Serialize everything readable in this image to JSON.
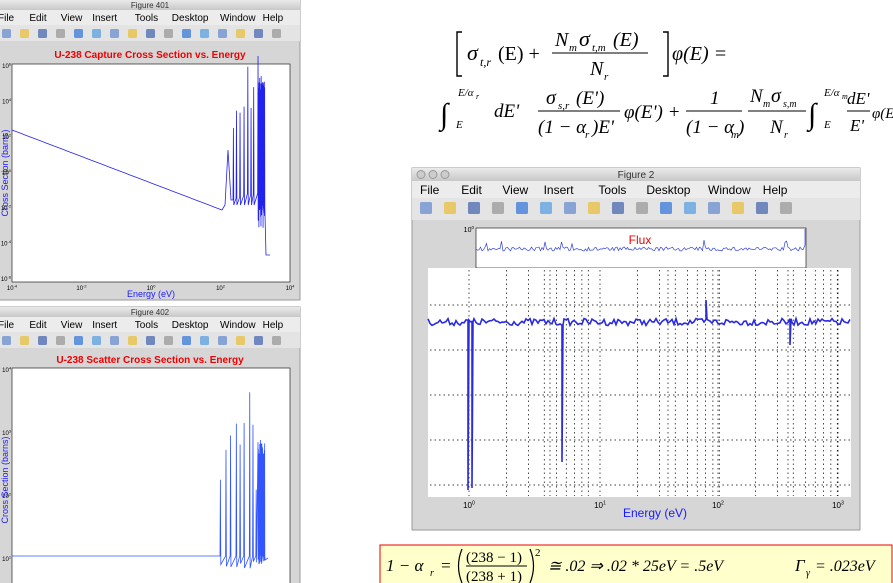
{
  "figure_401": {
    "window_title": "Figure 401",
    "menu": [
      "File",
      "Edit",
      "View",
      "Insert",
      "Tools",
      "Desktop",
      "Window",
      "Help"
    ],
    "plot_title": "U-238 Capture Cross Section vs. Energy",
    "ylabel": "Cross Section (barns)",
    "xlabel": "Energy (eV)",
    "xticks": [
      {
        "base": "10",
        "exponent": "-4"
      },
      {
        "base": "10",
        "exponent": "-2"
      },
      {
        "base": "10",
        "exponent": "0"
      },
      {
        "base": "10",
        "exponent": "2"
      },
      {
        "base": "10",
        "exponent": "4"
      }
    ],
    "yticks": [
      {
        "base": "10",
        "exponent": "6"
      },
      {
        "base": "10",
        "exponent": "4"
      },
      {
        "base": "10",
        "exponent": "2"
      },
      {
        "base": "10",
        "exponent": "0"
      },
      {
        "base": "10",
        "exponent": "-2"
      },
      {
        "base": "10",
        "exponent": "-4"
      },
      {
        "base": "10",
        "exponent": "-6"
      }
    ]
  },
  "figure_402": {
    "window_title": "Figure 402",
    "menu": [
      "File",
      "Edit",
      "View",
      "Insert",
      "Tools",
      "Desktop",
      "Window",
      "Help"
    ],
    "plot_title": "U-238 Scatter Cross Section vs. Energy",
    "ylabel": "Cross Section (barns)",
    "yticks": [
      {
        "base": "10",
        "exponent": "4"
      },
      {
        "base": "10",
        "exponent": "3"
      },
      {
        "base": "10",
        "exponent": "2"
      },
      {
        "base": "10",
        "exponent": "1"
      }
    ]
  },
  "figure_2": {
    "window_title": "Figure 2",
    "menu": [
      "File",
      "Edit",
      "View",
      "Insert",
      "Tools",
      "Desktop",
      "Window",
      "Help"
    ],
    "plot_title": "Flux",
    "xlabel": "Energy (eV)",
    "yticks": [
      {
        "base": "10",
        "exponent": "0"
      }
    ],
    "xticks": [
      {
        "base": "10",
        "exponent": "0"
      },
      {
        "base": "10",
        "exponent": "1"
      },
      {
        "base": "10",
        "exponent": "2"
      },
      {
        "base": "10",
        "exponent": "3"
      }
    ]
  },
  "equation_1": [
    "σ",
    "t,r",
    "(E) +",
    "N",
    "m",
    "σ",
    "t,m",
    "(E)",
    "N",
    "r",
    "φ(E) ="
  ],
  "equation_2": [
    "∫",
    "E/α",
    "r",
    "E",
    "dE'",
    "σ",
    "s,r",
    "(E')",
    "(1 − α",
    "r",
    ")E'",
    "φ(E') +",
    "1",
    "(1 − α",
    "m",
    ")",
    "N",
    "m",
    "σ",
    "s,m",
    "N",
    "r",
    "∫",
    "E/α",
    "m",
    "E",
    "dE'",
    "E'",
    "φ(E')"
  ],
  "equation_3": [
    "1 − α",
    "r",
    "=",
    "(238 − 1)",
    "(238 + 1)",
    "2",
    "≅ .02 ⇒ .02 * 25eV = .5eV",
    "Γ",
    "γ",
    "= .023eV"
  ]
}
